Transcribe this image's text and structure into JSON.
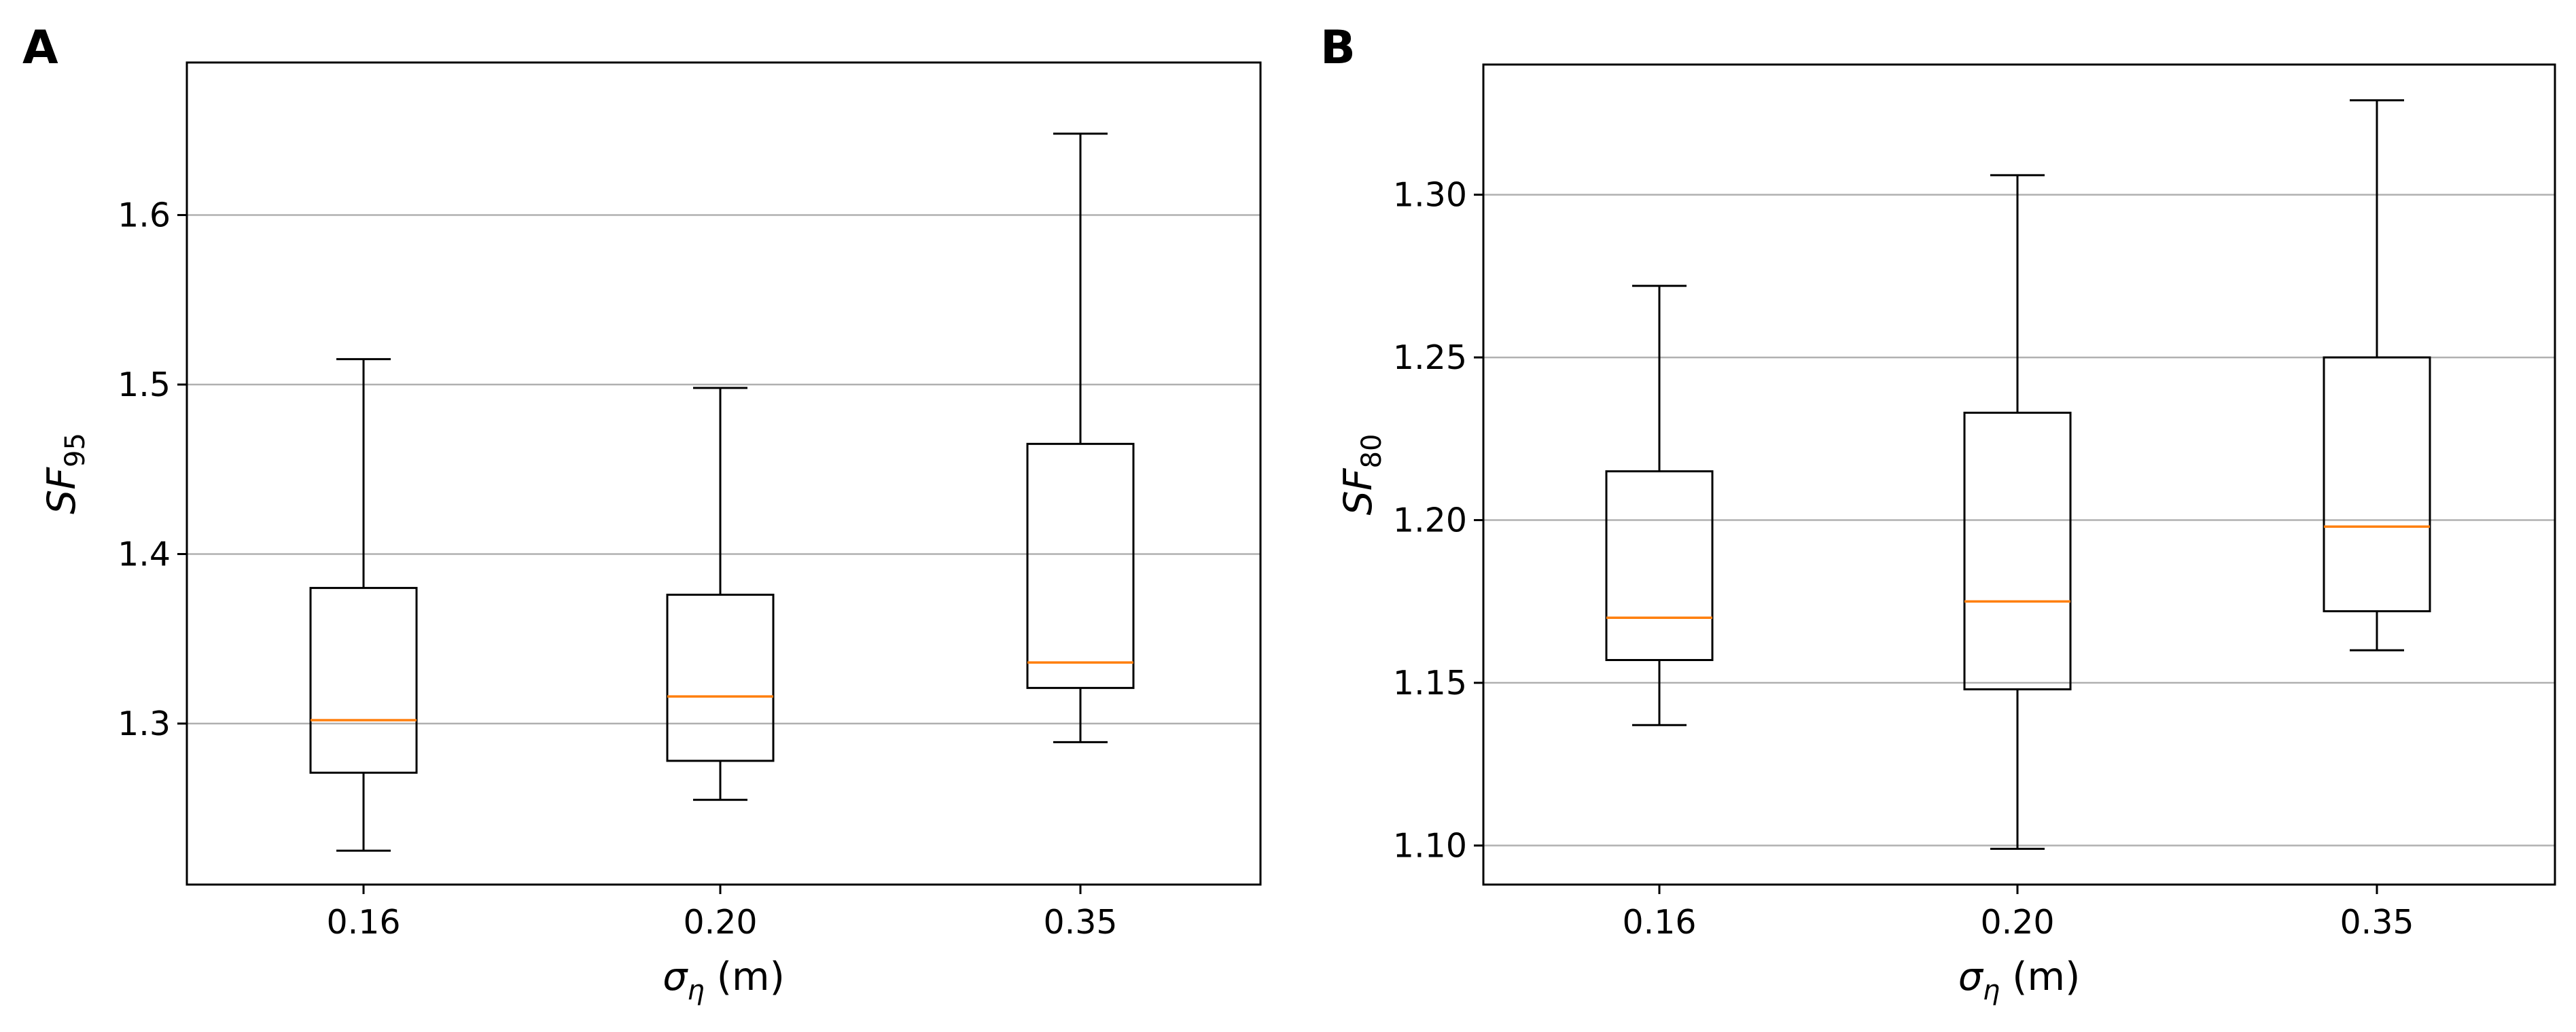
{
  "chart_data": [
    {
      "type": "box",
      "panel_label": "A",
      "title": "",
      "categories": [
        "0.16",
        "0.20",
        "0.35"
      ],
      "xlabel": {
        "symbol": "σ",
        "subscript": "η",
        "unit": " (m)"
      },
      "ylabel": {
        "main": "SF",
        "subscript": "95"
      },
      "ylim": [
        1.205,
        1.69
      ],
      "yticks": [
        1.3,
        1.4,
        1.5,
        1.6
      ],
      "ytick_labels": [
        "1.3",
        "1.4",
        "1.5",
        "1.6"
      ],
      "grid": "y",
      "boxes": [
        {
          "category": "0.16",
          "whisker_low": 1.225,
          "q1": 1.271,
          "median": 1.302,
          "q3": 1.38,
          "whisker_high": 1.515
        },
        {
          "category": "0.20",
          "whisker_low": 1.255,
          "q1": 1.278,
          "median": 1.316,
          "q3": 1.376,
          "whisker_high": 1.498
        },
        {
          "category": "0.35",
          "whisker_low": 1.289,
          "q1": 1.321,
          "median": 1.336,
          "q3": 1.465,
          "whisker_high": 1.648
        }
      ]
    },
    {
      "type": "box",
      "panel_label": "B",
      "title": "",
      "categories": [
        "0.16",
        "0.20",
        "0.35"
      ],
      "xlabel": {
        "symbol": "σ",
        "subscript": "η",
        "unit": " (m)"
      },
      "ylabel": {
        "main": "SF",
        "subscript": "80"
      },
      "ylim": [
        1.088,
        1.34
      ],
      "yticks": [
        1.1,
        1.15,
        1.2,
        1.25,
        1.3
      ],
      "ytick_labels": [
        "1.10",
        "1.15",
        "1.20",
        "1.25",
        "1.30"
      ],
      "grid": "y",
      "boxes": [
        {
          "category": "0.16",
          "whisker_low": 1.137,
          "q1": 1.157,
          "median": 1.17,
          "q3": 1.215,
          "whisker_high": 1.272
        },
        {
          "category": "0.20",
          "whisker_low": 1.099,
          "q1": 1.148,
          "median": 1.175,
          "q3": 1.233,
          "whisker_high": 1.306
        },
        {
          "category": "0.35",
          "whisker_low": 1.16,
          "q1": 1.172,
          "median": 1.198,
          "q3": 1.25,
          "whisker_high": 1.329
        }
      ]
    }
  ],
  "colors": {
    "median": "#ff7f0e",
    "box": "#000000",
    "grid": "#b0b0b0",
    "background": "#ffffff"
  }
}
